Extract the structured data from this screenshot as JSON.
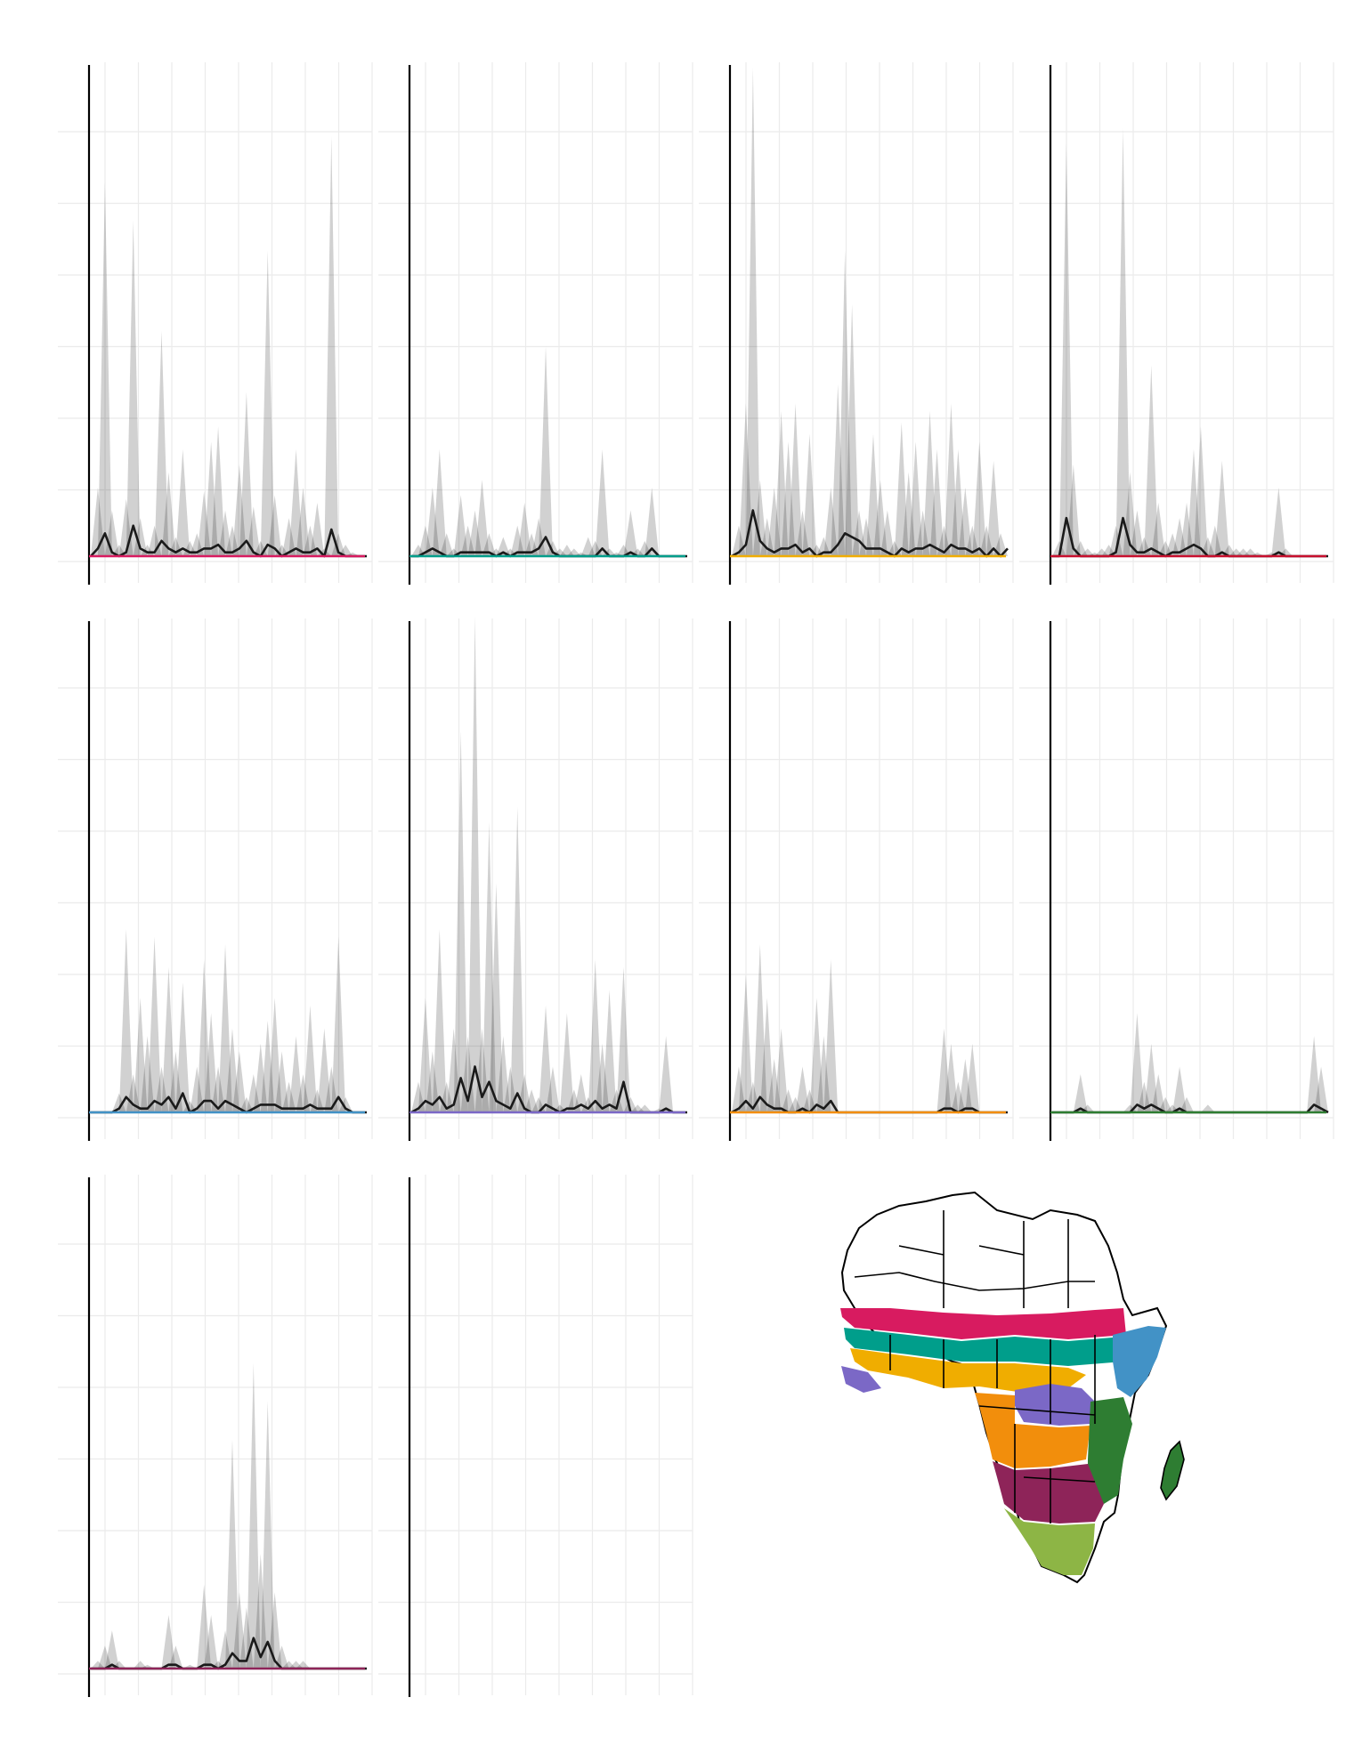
{
  "chart_data": {
    "type": "area",
    "layout": "small-multiples-4x3",
    "panels": [
      {
        "region_color": "#d81b60",
        "ymax": 120,
        "x": [
          1,
          2,
          3,
          4,
          5,
          6,
          7,
          8,
          9,
          10,
          11,
          12,
          13,
          14,
          15,
          16,
          17,
          18,
          19,
          20,
          21,
          22,
          23,
          24,
          25,
          26,
          27,
          28,
          29,
          30,
          31,
          32,
          33,
          34,
          35,
          36,
          37,
          38,
          39,
          40
        ],
        "upper": [
          0,
          18,
          98,
          12,
          3,
          15,
          88,
          10,
          3,
          8,
          59,
          22,
          5,
          28,
          4,
          6,
          17,
          30,
          34,
          12,
          8,
          24,
          43,
          13,
          4,
          80,
          16,
          3,
          10,
          28,
          18,
          8,
          14,
          2,
          110,
          6,
          3,
          1,
          0,
          0
        ],
        "median": [
          0,
          2,
          6,
          1,
          0,
          1,
          8,
          2,
          1,
          1,
          4,
          2,
          1,
          2,
          1,
          1,
          2,
          2,
          3,
          1,
          1,
          2,
          4,
          1,
          0,
          3,
          2,
          0,
          1,
          2,
          1,
          1,
          2,
          0,
          7,
          1,
          0,
          0,
          0,
          0
        ]
      },
      {
        "region_color": "#009e8b",
        "ymax": 120,
        "x": [
          1,
          2,
          3,
          4,
          5,
          6,
          7,
          8,
          9,
          10,
          11,
          12,
          13,
          14,
          15,
          16,
          17,
          18,
          19,
          20,
          21,
          22,
          23,
          24,
          25,
          26,
          27,
          28,
          29,
          30,
          31,
          32,
          33,
          34,
          35,
          36,
          37,
          38,
          39,
          40
        ],
        "upper": [
          0,
          3,
          8,
          18,
          28,
          6,
          2,
          16,
          8,
          12,
          20,
          6,
          2,
          5,
          2,
          8,
          14,
          6,
          10,
          55,
          4,
          2,
          3,
          2,
          1,
          5,
          4,
          28,
          2,
          1,
          3,
          12,
          2,
          4,
          18,
          0,
          0,
          0,
          0,
          0
        ],
        "median": [
          0,
          0,
          1,
          2,
          1,
          0,
          0,
          1,
          1,
          1,
          1,
          1,
          0,
          1,
          0,
          1,
          1,
          1,
          2,
          5,
          1,
          0,
          0,
          0,
          0,
          0,
          0,
          2,
          0,
          0,
          0,
          1,
          0,
          0,
          2,
          0,
          0,
          0,
          0,
          0
        ]
      },
      {
        "region_color": "#f0ad00",
        "ymax": 120,
        "x": [
          1,
          2,
          3,
          4,
          5,
          6,
          7,
          8,
          9,
          10,
          11,
          12,
          13,
          14,
          15,
          16,
          17,
          18,
          19,
          20,
          21,
          22,
          23,
          24,
          25,
          26,
          27,
          28,
          29,
          30,
          31,
          32,
          33,
          34,
          35,
          36,
          37,
          38,
          39,
          40
        ],
        "upper": [
          0,
          8,
          40,
          128,
          20,
          10,
          18,
          38,
          30,
          40,
          12,
          32,
          3,
          5,
          18,
          45,
          80,
          66,
          12,
          10,
          32,
          20,
          12,
          4,
          35,
          22,
          30,
          12,
          38,
          28,
          8,
          40,
          28,
          18,
          8,
          30,
          8,
          25,
          6,
          25
        ],
        "median": [
          0,
          1,
          3,
          12,
          4,
          2,
          1,
          2,
          2,
          3,
          1,
          2,
          0,
          1,
          1,
          3,
          6,
          5,
          4,
          2,
          2,
          2,
          1,
          0,
          2,
          1,
          2,
          2,
          3,
          2,
          1,
          3,
          2,
          2,
          1,
          2,
          0,
          2,
          0,
          2
        ]
      },
      {
        "region_color": "#c8102e",
        "ymax": 120,
        "x": [
          1,
          2,
          3,
          4,
          5,
          6,
          7,
          8,
          9,
          10,
          11,
          12,
          13,
          14,
          15,
          16,
          17,
          18,
          19,
          20,
          21,
          22,
          23,
          24,
          25,
          26,
          27,
          28,
          29,
          30,
          31,
          32,
          33,
          34,
          35,
          36,
          37,
          38,
          39,
          40
        ],
        "upper": [
          0,
          4,
          108,
          24,
          4,
          2,
          1,
          2,
          3,
          8,
          112,
          22,
          12,
          5,
          50,
          14,
          4,
          6,
          10,
          14,
          28,
          34,
          5,
          8,
          25,
          3,
          2,
          2,
          2,
          1,
          0,
          1,
          18,
          2,
          0,
          0,
          0,
          0,
          0,
          0
        ],
        "median": [
          0,
          0,
          10,
          2,
          0,
          0,
          0,
          0,
          0,
          1,
          10,
          3,
          1,
          1,
          2,
          1,
          0,
          1,
          1,
          2,
          3,
          2,
          0,
          0,
          1,
          0,
          0,
          0,
          0,
          0,
          0,
          0,
          1,
          0,
          0,
          0,
          0,
          0,
          0,
          0
        ]
      },
      {
        "region_color": "#4292c6",
        "ymax": 120,
        "x": [
          1,
          2,
          3,
          4,
          5,
          6,
          7,
          8,
          9,
          10,
          11,
          12,
          13,
          14,
          15,
          16,
          17,
          18,
          19,
          20,
          21,
          22,
          23,
          24,
          25,
          26,
          27,
          28,
          29,
          30,
          31,
          32,
          33,
          34,
          35,
          36,
          37,
          38,
          39,
          40
        ],
        "upper": [
          0,
          0,
          0,
          0,
          5,
          48,
          10,
          30,
          20,
          46,
          12,
          38,
          16,
          34,
          3,
          12,
          40,
          26,
          12,
          44,
          22,
          16,
          4,
          10,
          18,
          24,
          30,
          16,
          8,
          20,
          10,
          28,
          6,
          22,
          12,
          46,
          4,
          0,
          0,
          0
        ],
        "median": [
          0,
          0,
          0,
          0,
          1,
          4,
          2,
          1,
          1,
          3,
          2,
          4,
          1,
          5,
          0,
          1,
          3,
          3,
          1,
          3,
          2,
          1,
          0,
          1,
          2,
          2,
          2,
          1,
          1,
          1,
          1,
          2,
          1,
          1,
          1,
          4,
          1,
          0,
          0,
          0
        ]
      },
      {
        "region_color": "#7b68c6",
        "ymax": 120,
        "x": [
          1,
          2,
          3,
          4,
          5,
          6,
          7,
          8,
          9,
          10,
          11,
          12,
          13,
          14,
          15,
          16,
          17,
          18,
          19,
          20,
          21,
          22,
          23,
          24,
          25,
          26,
          27,
          28,
          29,
          30,
          31,
          32,
          33,
          34,
          35,
          36,
          37,
          38,
          39,
          40
        ],
        "upper": [
          0,
          8,
          30,
          16,
          48,
          8,
          22,
          100,
          20,
          130,
          22,
          76,
          60,
          20,
          12,
          80,
          10,
          6,
          4,
          28,
          12,
          2,
          26,
          6,
          10,
          4,
          40,
          18,
          32,
          6,
          38,
          4,
          2,
          2,
          0,
          1,
          20,
          0,
          0,
          0
        ],
        "median": [
          0,
          1,
          3,
          2,
          4,
          1,
          2,
          9,
          3,
          12,
          4,
          8,
          3,
          2,
          1,
          5,
          1,
          0,
          0,
          2,
          1,
          0,
          1,
          1,
          2,
          1,
          3,
          1,
          2,
          1,
          8,
          0,
          0,
          0,
          0,
          0,
          1,
          0,
          0,
          0
        ]
      },
      {
        "region_color": "#f28e0c",
        "ymax": 120,
        "x": [
          1,
          2,
          3,
          4,
          5,
          6,
          7,
          8,
          9,
          10,
          11,
          12,
          13,
          14,
          15,
          16,
          17,
          18,
          19,
          20,
          21,
          22,
          23,
          24,
          25,
          26,
          27,
          28,
          29,
          30,
          31,
          32,
          33,
          34,
          35,
          36,
          37,
          38,
          39,
          40
        ],
        "upper": [
          0,
          12,
          36,
          8,
          44,
          30,
          14,
          22,
          6,
          4,
          12,
          6,
          30,
          20,
          40,
          0,
          0,
          0,
          0,
          0,
          0,
          0,
          0,
          0,
          0,
          0,
          0,
          0,
          0,
          0,
          22,
          18,
          8,
          14,
          18,
          0,
          0,
          0,
          0,
          0
        ],
        "median": [
          0,
          1,
          3,
          1,
          4,
          2,
          1,
          1,
          0,
          0,
          1,
          0,
          2,
          1,
          3,
          0,
          0,
          0,
          0,
          0,
          0,
          0,
          0,
          0,
          0,
          0,
          0,
          0,
          0,
          0,
          1,
          1,
          0,
          1,
          1,
          0,
          0,
          0,
          0,
          0
        ]
      },
      {
        "region_color": "#2e7d32",
        "ymax": 120,
        "x": [
          1,
          2,
          3,
          4,
          5,
          6,
          7,
          8,
          9,
          10,
          11,
          12,
          13,
          14,
          15,
          16,
          17,
          18,
          19,
          20,
          21,
          22,
          23,
          24,
          25,
          26,
          27,
          28,
          29,
          30,
          31,
          32,
          33,
          34,
          35,
          36,
          37,
          38,
          39,
          40
        ],
        "upper": [
          0,
          0,
          0,
          0,
          10,
          2,
          0,
          0,
          0,
          0,
          0,
          2,
          26,
          8,
          18,
          10,
          4,
          2,
          12,
          4,
          0,
          0,
          2,
          0,
          0,
          0,
          0,
          0,
          0,
          0,
          0,
          0,
          0,
          0,
          0,
          0,
          0,
          20,
          12,
          0
        ],
        "median": [
          0,
          0,
          0,
          0,
          1,
          0,
          0,
          0,
          0,
          0,
          0,
          0,
          2,
          1,
          2,
          1,
          0,
          0,
          1,
          0,
          0,
          0,
          0,
          0,
          0,
          0,
          0,
          0,
          0,
          0,
          0,
          0,
          0,
          0,
          0,
          0,
          0,
          2,
          1,
          0
        ]
      },
      {
        "region_color": "#8e2459",
        "ymax": 120,
        "x": [
          1,
          2,
          3,
          4,
          5,
          6,
          7,
          8,
          9,
          10,
          11,
          12,
          13,
          14,
          15,
          16,
          17,
          18,
          19,
          20,
          21,
          22,
          23,
          24,
          25,
          26,
          27,
          28,
          29,
          30,
          31,
          32,
          33,
          34,
          35,
          36,
          37,
          38,
          39,
          40
        ],
        "upper": [
          0,
          2,
          6,
          10,
          2,
          0,
          0,
          2,
          1,
          0,
          0,
          14,
          6,
          0,
          1,
          0,
          22,
          14,
          2,
          10,
          60,
          20,
          16,
          80,
          30,
          70,
          20,
          6,
          2,
          2,
          2,
          0,
          0,
          0,
          0,
          0,
          0,
          0,
          0,
          0
        ],
        "median": [
          0,
          0,
          0,
          1,
          0,
          0,
          0,
          0,
          0,
          0,
          0,
          1,
          1,
          0,
          0,
          0,
          1,
          1,
          0,
          1,
          4,
          2,
          2,
          8,
          3,
          7,
          2,
          0,
          0,
          0,
          0,
          0,
          0,
          0,
          0,
          0,
          0,
          0,
          0,
          0
        ]
      },
      {
        "region_color": "#ffffff",
        "ymax": 120,
        "x": [],
        "upper": [],
        "median": []
      }
    ],
    "map": {
      "type": "choropleth",
      "region_colors": [
        "#d81b60",
        "#009e8b",
        "#f0ad00",
        "#c8102e",
        "#4292c6",
        "#7b68c6",
        "#f28e0c",
        "#2e7d32",
        "#8e2459",
        "#8db545"
      ]
    }
  }
}
